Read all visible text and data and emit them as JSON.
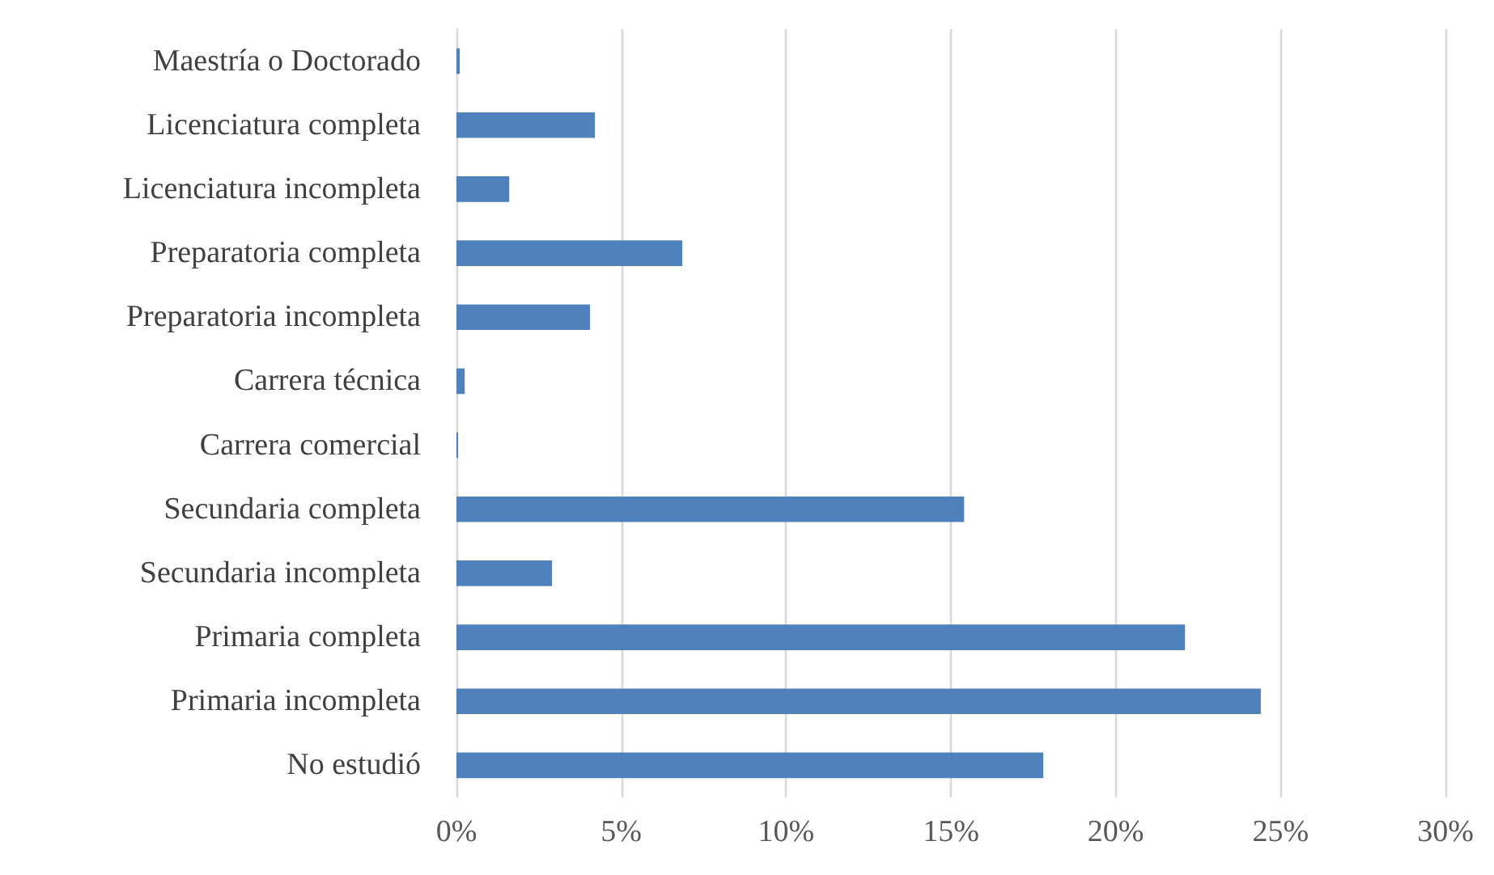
{
  "chart_data": {
    "type": "bar",
    "orientation": "horizontal",
    "categories": [
      "Maestría o Doctorado",
      "Licenciatura completa",
      "Licenciatura incompleta",
      "Preparatoria completa",
      "Preparatoria incompleta",
      "Carrera técnica",
      "Carrera comercial",
      "Secundaria completa",
      "Secundaria incompleta",
      "Primaria completa",
      "Primaria incompleta",
      "No estudió"
    ],
    "values": [
      0.1,
      4.2,
      1.6,
      6.85,
      4.05,
      0.25,
      0.05,
      15.4,
      2.9,
      22.1,
      24.4,
      17.8
    ],
    "color": "#4f81bd",
    "xlim": [
      0,
      30
    ],
    "xticks": [
      {
        "value": 0,
        "label": "0%"
      },
      {
        "value": 5,
        "label": "5%"
      },
      {
        "value": 10,
        "label": "10%"
      },
      {
        "value": 15,
        "label": "15%"
      },
      {
        "value": 20,
        "label": "20%"
      },
      {
        "value": 25,
        "label": "25%"
      },
      {
        "value": 30,
        "label": "30%"
      }
    ],
    "grid": "x"
  }
}
